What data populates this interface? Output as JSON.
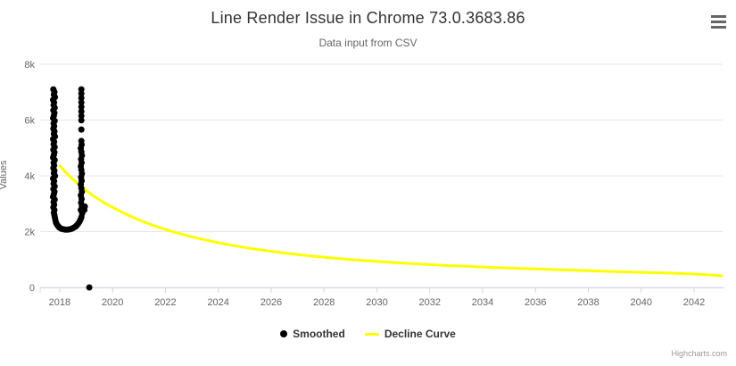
{
  "header": {
    "title": "Line Render Issue in Chrome 73.0.3683.86",
    "subtitle": "Data input from CSV"
  },
  "menu": {
    "context_button": "hamburger-menu"
  },
  "axes": {
    "y_title": "Values",
    "y_tick_labels": [
      "0",
      "2k",
      "4k",
      "6k",
      "8k"
    ],
    "x_tick_labels": [
      "2018",
      "2020",
      "2022",
      "2024",
      "2026",
      "2028",
      "2030",
      "2032",
      "2034",
      "2036",
      "2038",
      "2040",
      "2042"
    ]
  },
  "legend": {
    "items": [
      {
        "label": "Smoothed",
        "marker": "dot",
        "color": "#000000"
      },
      {
        "label": "Decline Curve",
        "marker": "line",
        "color": "#ffff00"
      }
    ]
  },
  "credits": {
    "label": "Highcharts.com"
  },
  "colors": {
    "series_smoothed": "#000000",
    "series_decline": "#ffff00",
    "grid": "#e6e6e6",
    "axis_line": "#ccd6eb",
    "tick": "#ccd6eb",
    "text_dark": "#333333",
    "text_muted": "#666666",
    "credits": "#999999"
  },
  "chart_data": {
    "type": "scatter+line",
    "title": "Line Render Issue in Chrome 73.0.3683.86",
    "subtitle": "Data input from CSV",
    "xlabel": "",
    "ylabel": "Values",
    "xlim": [
      2017.26,
      2043.08
    ],
    "ylim": [
      0,
      8000
    ],
    "x_ticks": [
      2018,
      2020,
      2022,
      2024,
      2026,
      2028,
      2030,
      2032,
      2034,
      2036,
      2038,
      2040,
      2042
    ],
    "y_ticks": [
      0,
      2000,
      4000,
      6000,
      8000
    ],
    "grid": true,
    "legend_position": "bottom-center",
    "series": [
      {
        "name": "Smoothed",
        "type": "scatter",
        "color": "#000000",
        "marker_radius": 3.5,
        "points": [
          [
            2017.76,
            7100
          ],
          [
            2017.8,
            7006
          ],
          [
            2017.78,
            6912
          ],
          [
            2017.82,
            6818
          ],
          [
            2017.75,
            6724
          ],
          [
            2017.79,
            6630
          ],
          [
            2017.77,
            6536
          ],
          [
            2017.81,
            6442
          ],
          [
            2017.76,
            6348
          ],
          [
            2017.8,
            6254
          ],
          [
            2017.78,
            6160
          ],
          [
            2017.75,
            6066
          ],
          [
            2017.81,
            5972
          ],
          [
            2017.77,
            5878
          ],
          [
            2017.79,
            5784
          ],
          [
            2017.76,
            5690
          ],
          [
            2017.8,
            5596
          ],
          [
            2017.78,
            5502
          ],
          [
            2017.82,
            5408
          ],
          [
            2017.75,
            5314
          ],
          [
            2017.79,
            5220
          ],
          [
            2017.77,
            5126
          ],
          [
            2017.81,
            5032
          ],
          [
            2017.76,
            4938
          ],
          [
            2017.8,
            4844
          ],
          [
            2017.78,
            4750
          ],
          [
            2017.75,
            4656
          ],
          [
            2017.81,
            4562
          ],
          [
            2017.77,
            4468
          ],
          [
            2017.79,
            4374
          ],
          [
            2017.76,
            4280
          ],
          [
            2017.8,
            4186
          ],
          [
            2017.78,
            4092
          ],
          [
            2017.82,
            3998
          ],
          [
            2017.75,
            3904
          ],
          [
            2017.79,
            3810
          ],
          [
            2017.77,
            3716
          ],
          [
            2017.81,
            3622
          ],
          [
            2017.76,
            3528
          ],
          [
            2017.8,
            3434
          ],
          [
            2017.78,
            3340
          ],
          [
            2017.75,
            3246
          ],
          [
            2017.81,
            3152
          ],
          [
            2017.77,
            3058
          ],
          [
            2017.79,
            2964
          ],
          [
            2017.76,
            2870
          ],
          [
            2017.8,
            2776
          ],
          [
            2017.78,
            2682
          ],
          [
            2017.8,
            2588
          ],
          [
            2017.82,
            2494
          ],
          [
            2017.84,
            2400
          ],
          [
            2017.86,
            2320
          ],
          [
            2017.9,
            2250
          ],
          [
            2017.95,
            2190
          ],
          [
            2018.0,
            2140
          ],
          [
            2018.06,
            2105
          ],
          [
            2018.13,
            2085
          ],
          [
            2018.2,
            2075
          ],
          [
            2018.28,
            2070
          ],
          [
            2018.36,
            2080
          ],
          [
            2018.44,
            2100
          ],
          [
            2018.51,
            2130
          ],
          [
            2018.58,
            2170
          ],
          [
            2018.64,
            2220
          ],
          [
            2018.7,
            2290
          ],
          [
            2018.75,
            2360
          ],
          [
            2018.79,
            2440
          ],
          [
            2018.82,
            2520
          ],
          [
            2018.85,
            2650
          ],
          [
            2018.8,
            2780
          ],
          [
            2018.84,
            2910
          ],
          [
            2018.81,
            3040
          ],
          [
            2018.83,
            3170
          ],
          [
            2018.8,
            3300
          ],
          [
            2018.84,
            3430
          ],
          [
            2018.82,
            3560
          ],
          [
            2018.8,
            3690
          ],
          [
            2018.83,
            3820
          ],
          [
            2018.81,
            3950
          ],
          [
            2018.84,
            4080
          ],
          [
            2018.82,
            4210
          ],
          [
            2018.8,
            4340
          ],
          [
            2018.83,
            4470
          ],
          [
            2018.81,
            4600
          ],
          [
            2018.84,
            4730
          ],
          [
            2018.82,
            4860
          ],
          [
            2018.8,
            4990
          ],
          [
            2018.83,
            5120
          ],
          [
            2018.82,
            5250
          ],
          [
            2018.82,
            5660
          ],
          [
            2018.82,
            5990
          ],
          [
            2018.82,
            6150
          ],
          [
            2018.82,
            6310
          ],
          [
            2018.82,
            6470
          ],
          [
            2018.82,
            6630
          ],
          [
            2018.82,
            6790
          ],
          [
            2018.82,
            6950
          ],
          [
            2018.82,
            7100
          ],
          [
            2018.95,
            2900
          ],
          [
            2018.93,
            2780
          ],
          [
            2019.12,
            0
          ]
        ]
      },
      {
        "name": "Decline Curve",
        "type": "line",
        "color": "#ffff00",
        "stroke_width": 3,
        "points": [
          [
            2018.02,
            4360
          ],
          [
            2018.25,
            4110
          ],
          [
            2018.5,
            3880
          ],
          [
            2018.75,
            3670
          ],
          [
            2019.0,
            3480
          ],
          [
            2019.25,
            3300
          ],
          [
            2019.5,
            3145
          ],
          [
            2019.75,
            3000
          ],
          [
            2020.0,
            2870
          ],
          [
            2020.5,
            2630
          ],
          [
            2021.0,
            2420
          ],
          [
            2021.5,
            2240
          ],
          [
            2022.0,
            2080
          ],
          [
            2022.5,
            1940
          ],
          [
            2023.0,
            1815
          ],
          [
            2023.5,
            1705
          ],
          [
            2024.0,
            1605
          ],
          [
            2024.5,
            1515
          ],
          [
            2025.0,
            1435
          ],
          [
            2025.5,
            1360
          ],
          [
            2026.0,
            1295
          ],
          [
            2026.5,
            1235
          ],
          [
            2027.0,
            1180
          ],
          [
            2027.5,
            1130
          ],
          [
            2028.0,
            1085
          ],
          [
            2028.5,
            1040
          ],
          [
            2029.0,
            1000
          ],
          [
            2029.5,
            965
          ],
          [
            2030.0,
            930
          ],
          [
            2030.5,
            900
          ],
          [
            2031.0,
            870
          ],
          [
            2031.5,
            845
          ],
          [
            2032.0,
            820
          ],
          [
            2032.5,
            795
          ],
          [
            2033.0,
            775
          ],
          [
            2033.5,
            752
          ],
          [
            2034.0,
            732
          ],
          [
            2034.5,
            713
          ],
          [
            2035.0,
            695
          ],
          [
            2035.5,
            678
          ],
          [
            2036.0,
            662
          ],
          [
            2036.5,
            646
          ],
          [
            2037.0,
            630
          ],
          [
            2037.5,
            615
          ],
          [
            2038.0,
            600
          ],
          [
            2038.5,
            585
          ],
          [
            2039.0,
            570
          ],
          [
            2039.5,
            556
          ],
          [
            2040.0,
            542
          ],
          [
            2040.5,
            528
          ],
          [
            2041.0,
            514
          ],
          [
            2041.5,
            500
          ],
          [
            2042.0,
            480
          ],
          [
            2042.5,
            455
          ],
          [
            2043.05,
            420
          ]
        ]
      }
    ]
  }
}
